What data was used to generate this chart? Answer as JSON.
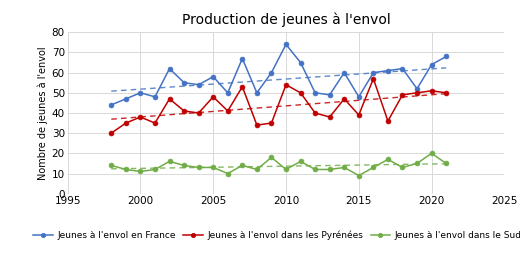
{
  "title": "Production de jeunes à l'envol",
  "ylabel": "Nombre de jeunes à l'envol",
  "xlim": [
    1995,
    2025
  ],
  "ylim": [
    0,
    80
  ],
  "yticks": [
    0,
    10,
    20,
    30,
    40,
    50,
    60,
    70,
    80
  ],
  "xticks": [
    1995,
    2000,
    2005,
    2010,
    2015,
    2020,
    2025
  ],
  "france": {
    "years": [
      1998,
      1999,
      2000,
      2001,
      2002,
      2003,
      2004,
      2005,
      2006,
      2007,
      2008,
      2009,
      2010,
      2011,
      2012,
      2013,
      2014,
      2015,
      2016,
      2017,
      2018,
      2019,
      2020,
      2021
    ],
    "values": [
      44,
      47,
      50,
      48,
      62,
      55,
      54,
      58,
      50,
      67,
      50,
      60,
      74,
      65,
      50,
      49,
      60,
      48,
      60,
      61,
      62,
      52,
      64,
      68
    ],
    "color": "#4472C4",
    "label": "Jeunes à l'envol en France"
  },
  "pyrenees": {
    "years": [
      1998,
      1999,
      2000,
      2001,
      2002,
      2003,
      2004,
      2005,
      2006,
      2007,
      2008,
      2009,
      2010,
      2011,
      2012,
      2013,
      2014,
      2015,
      2016,
      2017,
      2018,
      2019,
      2020,
      2021
    ],
    "values": [
      30,
      35,
      38,
      35,
      47,
      41,
      40,
      48,
      41,
      53,
      34,
      35,
      54,
      50,
      40,
      38,
      47,
      39,
      57,
      36,
      49,
      50,
      51,
      50
    ],
    "color": "#C00000",
    "label": "Jeunes à l'envol dans les Pyrénées"
  },
  "sudest": {
    "years": [
      1998,
      1999,
      2000,
      2001,
      2002,
      2003,
      2004,
      2005,
      2006,
      2007,
      2008,
      2009,
      2010,
      2011,
      2012,
      2013,
      2014,
      2015,
      2016,
      2017,
      2018,
      2019,
      2020,
      2021
    ],
    "values": [
      14,
      12,
      11,
      12,
      16,
      14,
      13,
      13,
      10,
      14,
      12,
      18,
      12,
      16,
      12,
      12,
      13,
      9,
      13,
      17,
      13,
      15,
      20,
      15
    ],
    "color": "#70AD47",
    "label": "Jeunes à l'envol dans le Sud-Est"
  },
  "background": "#FFFFFF",
  "grid_color": "#D9D9D9"
}
